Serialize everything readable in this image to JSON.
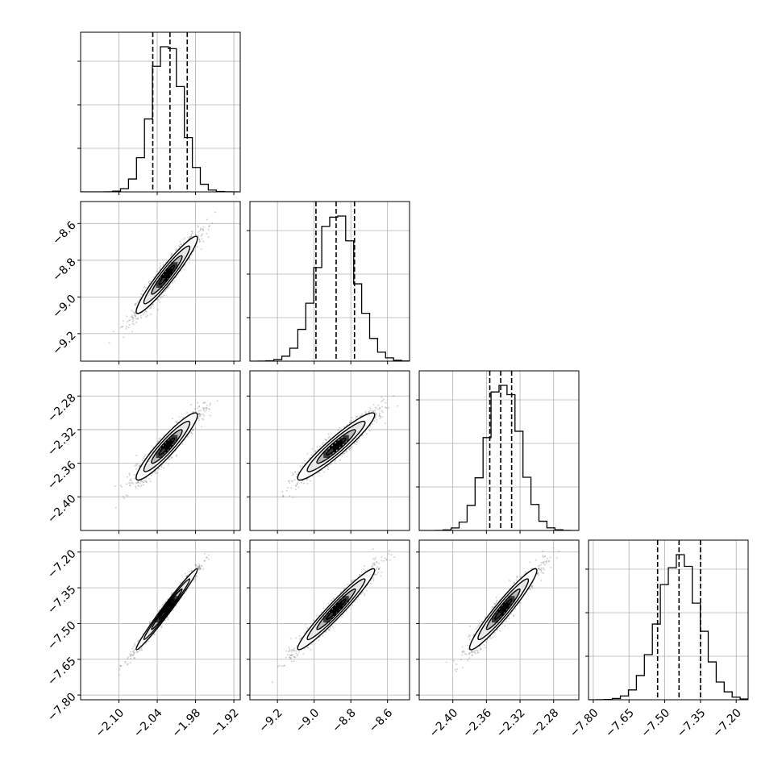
{
  "chart_data": {
    "type": "corner",
    "n_params": 4,
    "parameters": [
      {
        "range": [
          -2.16,
          -1.91
        ],
        "ticks": [
          -2.1,
          -2.04,
          -1.98,
          -1.92
        ],
        "tick_labels": [
          "−2.10",
          "−2.04",
          "−1.98",
          "−1.92"
        ],
        "mean": -2.025,
        "std": 0.024,
        "quantiles": [
          -2.047,
          -2.02,
          -1.993
        ]
      },
      {
        "range": [
          -9.35,
          -8.48
        ],
        "ticks": [
          -9.2,
          -9.0,
          -8.8,
          -8.6
        ],
        "tick_labels": [
          "−9.2",
          "−9.0",
          "−8.8",
          "−8.6"
        ],
        "mean": -8.88,
        "std": 0.105,
        "quantiles": [
          -8.99,
          -8.88,
          -8.78
        ]
      },
      {
        "range": [
          -2.44,
          -2.25
        ],
        "ticks": [
          -2.4,
          -2.36,
          -2.32,
          -2.28
        ],
        "tick_labels": [
          "−2.40",
          "−2.36",
          "−2.32",
          "−2.28"
        ],
        "mean": -2.34,
        "std": 0.02,
        "quantiles": [
          -2.356,
          -2.343,
          -2.33
        ]
      },
      {
        "range": [
          -7.82,
          -7.15
        ],
        "ticks": [
          -7.8,
          -7.65,
          -7.5,
          -7.35,
          -7.2
        ],
        "tick_labels": [
          "−7.80",
          "−7.65",
          "−7.50",
          "−7.35",
          "−7.20"
        ],
        "mean": -7.44,
        "std": 0.085,
        "quantiles": [
          -7.53,
          -7.44,
          -7.35
        ]
      }
    ],
    "correlations": {
      "1-0": 0.95,
      "2-0": 0.93,
      "2-1": 0.94,
      "3-0": 0.985,
      "3-1": 0.965,
      "3-2": 0.955
    },
    "contour_levels_sigma": [
      0.5,
      1.0,
      1.5,
      2.0
    ],
    "histogram_bins": 20,
    "grid": true,
    "xlabels": [
      "",
      "",
      "",
      ""
    ],
    "ylabels": [
      "",
      "",
      "",
      ""
    ],
    "colors": {
      "points": "#7f7f7f",
      "contours": "#000000",
      "fill_dark": "#000000",
      "fill_light": "#ffffff"
    }
  }
}
